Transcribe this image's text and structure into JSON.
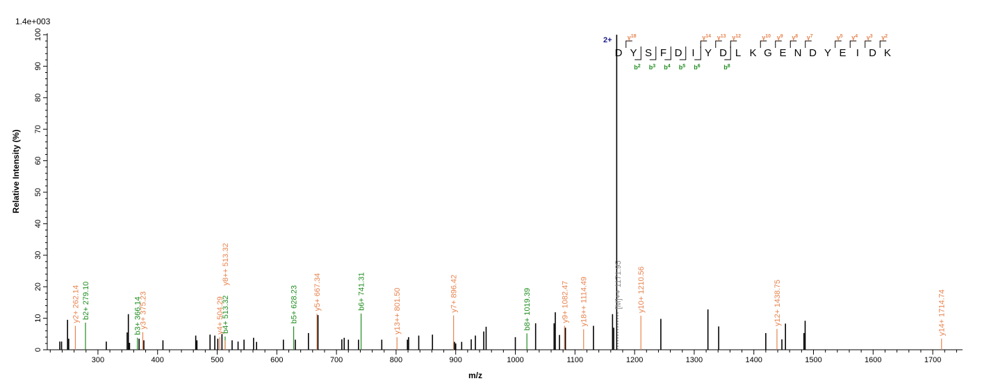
{
  "chart_data": {
    "type": "bar",
    "title": "",
    "scale_label": "1.4e+003",
    "xlabel": "m/z",
    "ylabel": "Relative   Intensity (%)",
    "xlim": [
      215,
      1750
    ],
    "ylim": [
      0,
      100
    ],
    "x_ticks": [
      300,
      400,
      500,
      600,
      700,
      800,
      900,
      1000,
      1100,
      1200,
      1300,
      1400,
      1500,
      1600,
      1700
    ],
    "y_ticks": [
      0,
      10,
      20,
      30,
      40,
      50,
      60,
      70,
      80,
      90,
      100
    ],
    "series_colors": {
      "y": "#e8834e",
      "b": "#1e8c1e",
      "other": "#000000",
      "precursor": "#888888"
    },
    "peaks": [
      {
        "x": 236,
        "y": 2.6,
        "ion": "other"
      },
      {
        "x": 239,
        "y": 2.6,
        "ion": "other"
      },
      {
        "x": 249,
        "y": 9.5,
        "ion": "other"
      },
      {
        "x": 251,
        "y": 3.5,
        "ion": "other"
      },
      {
        "x": 262.14,
        "y": 7.6,
        "ion": "y",
        "label": "y2+  262.14"
      },
      {
        "x": 279.1,
        "y": 8.6,
        "ion": "b",
        "label": "b2+  279.10"
      },
      {
        "x": 314,
        "y": 2.6,
        "ion": "other"
      },
      {
        "x": 349,
        "y": 5.5,
        "ion": "other"
      },
      {
        "x": 351,
        "y": 11.3,
        "ion": "other"
      },
      {
        "x": 353,
        "y": 2.2,
        "ion": "other"
      },
      {
        "x": 366.14,
        "y": 3.8,
        "ion": "b",
        "label": "b3+  366.14"
      },
      {
        "x": 369,
        "y": 3.5,
        "ion": "other"
      },
      {
        "x": 375.23,
        "y": 5.6,
        "ion": "y",
        "label": "y3+  375.23"
      },
      {
        "x": 377,
        "y": 3.0,
        "ion": "other"
      },
      {
        "x": 409,
        "y": 3.0,
        "ion": "other"
      },
      {
        "x": 464,
        "y": 4.5,
        "ion": "other"
      },
      {
        "x": 466,
        "y": 3.0,
        "ion": "other"
      },
      {
        "x": 488,
        "y": 4.8,
        "ion": "other"
      },
      {
        "x": 496,
        "y": 4.5,
        "ion": "other"
      },
      {
        "x": 501,
        "y": 3.5,
        "ion": "other"
      },
      {
        "x": 504.29,
        "y": 4.0,
        "ion": "y",
        "label": "y4+  504.29"
      },
      {
        "x": 508,
        "y": 5.0,
        "ion": "other"
      },
      {
        "x": 513.32,
        "y": 4.2,
        "ion": "b",
        "label": "b4+  513.32"
      },
      {
        "x": 513.32,
        "y": 3.0,
        "ion": "y",
        "label": "y8++  513.32",
        "label_y": 19.5
      },
      {
        "x": 525,
        "y": 3.0,
        "ion": "other"
      },
      {
        "x": 535,
        "y": 2.6,
        "ion": "other"
      },
      {
        "x": 545,
        "y": 3.2,
        "ion": "other"
      },
      {
        "x": 561,
        "y": 3.8,
        "ion": "other"
      },
      {
        "x": 566,
        "y": 2.5,
        "ion": "other"
      },
      {
        "x": 611,
        "y": 3.2,
        "ion": "other"
      },
      {
        "x": 628.23,
        "y": 7.4,
        "ion": "b",
        "label": "b5+  628.23"
      },
      {
        "x": 631,
        "y": 3.2,
        "ion": "other"
      },
      {
        "x": 653,
        "y": 5.3,
        "ion": "other"
      },
      {
        "x": 667.34,
        "y": 11.4,
        "ion": "y",
        "label": "y5+  667.34"
      },
      {
        "x": 669,
        "y": 11.0,
        "ion": "other"
      },
      {
        "x": 709,
        "y": 3.3,
        "ion": "other"
      },
      {
        "x": 713,
        "y": 3.8,
        "ion": "other"
      },
      {
        "x": 720,
        "y": 3.2,
        "ion": "other"
      },
      {
        "x": 737,
        "y": 3.2,
        "ion": "other"
      },
      {
        "x": 741.31,
        "y": 11.5,
        "ion": "b",
        "label": "b6+  741.31"
      },
      {
        "x": 776,
        "y": 3.2,
        "ion": "other"
      },
      {
        "x": 801.5,
        "y": 4.0,
        "ion": "y",
        "label": "y13++  801.50"
      },
      {
        "x": 819,
        "y": 3.2,
        "ion": "other"
      },
      {
        "x": 821,
        "y": 4.0,
        "ion": "other"
      },
      {
        "x": 838,
        "y": 4.5,
        "ion": "other"
      },
      {
        "x": 861,
        "y": 4.8,
        "ion": "other"
      },
      {
        "x": 896.42,
        "y": 10.9,
        "ion": "y",
        "label": "y7+  896.42"
      },
      {
        "x": 898,
        "y": 2.5,
        "ion": "other"
      },
      {
        "x": 900,
        "y": 2.0,
        "ion": "other"
      },
      {
        "x": 910,
        "y": 2.5,
        "ion": "other"
      },
      {
        "x": 926,
        "y": 3.3,
        "ion": "other"
      },
      {
        "x": 933,
        "y": 4.5,
        "ion": "other"
      },
      {
        "x": 947,
        "y": 5.8,
        "ion": "other"
      },
      {
        "x": 951,
        "y": 7.3,
        "ion": "other"
      },
      {
        "x": 1000,
        "y": 4.0,
        "ion": "other"
      },
      {
        "x": 1019.39,
        "y": 5.2,
        "ion": "b",
        "label": "b8+  1019.39"
      },
      {
        "x": 1034,
        "y": 8.4,
        "ion": "other"
      },
      {
        "x": 1065,
        "y": 8.4,
        "ion": "other"
      },
      {
        "x": 1067,
        "y": 11.9,
        "ion": "other"
      },
      {
        "x": 1074,
        "y": 4.7,
        "ion": "other"
      },
      {
        "x": 1082.47,
        "y": 7.6,
        "ion": "y",
        "label": "y9+  1082.47"
      },
      {
        "x": 1084,
        "y": 7.0,
        "ion": "other"
      },
      {
        "x": 1114.49,
        "y": 6.5,
        "ion": "y",
        "label": "y18++  1114.49"
      },
      {
        "x": 1131,
        "y": 7.6,
        "ion": "other"
      },
      {
        "x": 1163,
        "y": 11.3,
        "ion": "other"
      },
      {
        "x": 1165,
        "y": 7.0,
        "ion": "other"
      },
      {
        "x": 1170,
        "y": 100,
        "ion": "other"
      },
      {
        "x": 1171.95,
        "y": 12.0,
        "ion": "precursor",
        "label": "[M]++  1171.95"
      },
      {
        "x": 1210.56,
        "y": 10.8,
        "ion": "y",
        "label": "y10+  1210.56"
      },
      {
        "x": 1244,
        "y": 9.8,
        "ion": "other"
      },
      {
        "x": 1323,
        "y": 12.8,
        "ion": "other"
      },
      {
        "x": 1341,
        "y": 7.4,
        "ion": "other"
      },
      {
        "x": 1420,
        "y": 5.3,
        "ion": "other"
      },
      {
        "x": 1438.75,
        "y": 6.6,
        "ion": "y",
        "label": "y12+  1438.75"
      },
      {
        "x": 1447,
        "y": 3.3,
        "ion": "other"
      },
      {
        "x": 1453,
        "y": 8.3,
        "ion": "other"
      },
      {
        "x": 1484,
        "y": 5.3,
        "ion": "other"
      },
      {
        "x": 1486,
        "y": 9.2,
        "ion": "other"
      },
      {
        "x": 1714.74,
        "y": 3.5,
        "ion": "y",
        "label": "y14+  1714.74"
      }
    ],
    "sequence": {
      "charge": "2+",
      "residues": [
        "D",
        "Y",
        "S",
        "F",
        "D",
        "I",
        "Y",
        "D",
        "L",
        "K",
        "G",
        "E",
        "N",
        "D",
        "Y",
        "E",
        "I",
        "D",
        "K"
      ],
      "y_ions": [
        {
          "after": 0,
          "label": "y",
          "num": "18"
        },
        {
          "after": 5,
          "label": "y",
          "num": "14"
        },
        {
          "after": 6,
          "label": "y",
          "num": "13"
        },
        {
          "after": 7,
          "label": "y",
          "num": "12"
        },
        {
          "after": 9,
          "label": "y",
          "num": "10"
        },
        {
          "after": 10,
          "label": "y",
          "num": "9"
        },
        {
          "after": 11,
          "label": "y",
          "num": "8"
        },
        {
          "after": 12,
          "label": "y",
          "num": "7"
        },
        {
          "after": 14,
          "label": "y",
          "num": "5"
        },
        {
          "after": 15,
          "label": "y",
          "num": "4"
        },
        {
          "after": 16,
          "label": "y",
          "num": "3"
        },
        {
          "after": 17,
          "label": "y",
          "num": "2"
        }
      ],
      "b_ions": [
        {
          "after": 1,
          "label": "b",
          "num": "2"
        },
        {
          "after": 2,
          "label": "b",
          "num": "3"
        },
        {
          "after": 3,
          "label": "b",
          "num": "4"
        },
        {
          "after": 4,
          "label": "b",
          "num": "5"
        },
        {
          "after": 5,
          "label": "b",
          "num": "6"
        },
        {
          "after": 7,
          "label": "b",
          "num": "8"
        }
      ]
    }
  }
}
